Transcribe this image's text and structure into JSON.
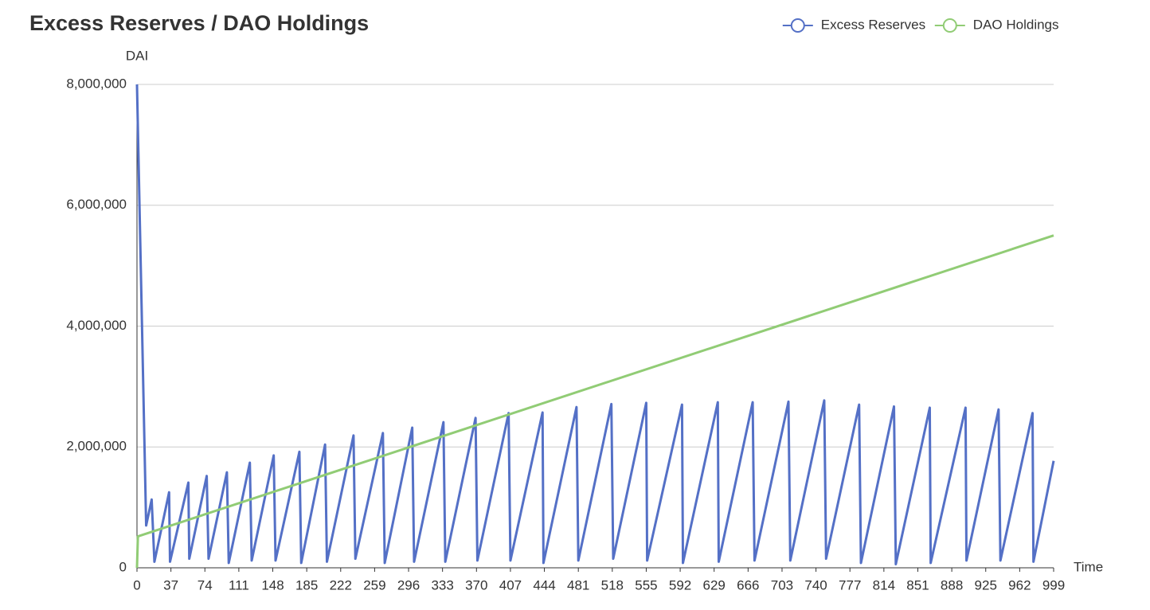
{
  "chart_data": {
    "type": "line",
    "title": "Excess Reserves / DAO Holdings",
    "y_label": "DAI",
    "x_label": "Time",
    "legend": "top-right",
    "grid": true,
    "xlim": [
      0,
      999
    ],
    "xticks": [
      0,
      37,
      74,
      111,
      148,
      185,
      222,
      259,
      296,
      333,
      370,
      407,
      444,
      481,
      518,
      555,
      592,
      629,
      666,
      703,
      740,
      777,
      814,
      851,
      888,
      925,
      962,
      999
    ],
    "ylim": [
      0,
      8000000
    ],
    "yticks": [
      0,
      {
        "value": 2000000,
        "label": "2,000,000"
      },
      {
        "value": 4000000,
        "label": "4,000,000"
      },
      {
        "value": 6000000,
        "label": "6,000,000"
      },
      {
        "value": 8000000,
        "label": "8,000,000"
      }
    ],
    "series": [
      {
        "name": "Excess Reserves",
        "color": "#5470c6",
        "x": [
          0,
          10,
          16,
          19,
          35,
          36,
          56,
          57,
          76,
          78,
          98,
          100,
          123,
          125,
          149,
          151,
          177,
          179,
          205,
          207,
          236,
          238,
          268,
          270,
          300,
          302,
          334,
          336,
          369,
          371,
          405,
          407,
          442,
          443,
          479,
          481,
          517,
          519,
          555,
          556,
          594,
          595,
          633,
          634,
          671,
          673,
          710,
          712,
          749,
          751,
          787,
          789,
          825,
          827,
          864,
          865,
          903,
          904,
          939,
          941,
          976,
          977,
          999
        ],
        "values": [
          8000000,
          700000,
          1130000,
          100000,
          1250000,
          100000,
          1410000,
          150000,
          1520000,
          150000,
          1580000,
          80000,
          1740000,
          120000,
          1860000,
          120000,
          1920000,
          80000,
          2040000,
          100000,
          2190000,
          150000,
          2230000,
          80000,
          2320000,
          100000,
          2410000,
          100000,
          2480000,
          120000,
          2560000,
          120000,
          2570000,
          80000,
          2660000,
          120000,
          2710000,
          150000,
          2730000,
          120000,
          2700000,
          80000,
          2740000,
          100000,
          2740000,
          120000,
          2750000,
          120000,
          2770000,
          150000,
          2700000,
          80000,
          2670000,
          60000,
          2650000,
          80000,
          2650000,
          120000,
          2620000,
          120000,
          2560000,
          100000,
          1770000
        ]
      },
      {
        "name": "DAO Holdings",
        "color": "#91cc75",
        "x": [
          0,
          1,
          999
        ],
        "values": [
          0,
          520000,
          5500000
        ]
      }
    ]
  }
}
